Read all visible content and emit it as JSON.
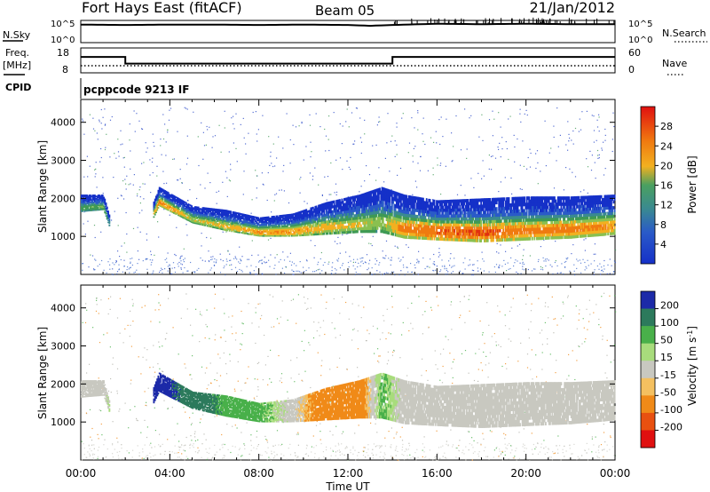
{
  "header": {
    "station": "Fort Hays East (fitACF)",
    "beam": "Beam 05",
    "date": "21/Jan/2012"
  },
  "status_panels": {
    "nsky_label": "N.Sky",
    "nsearch_label": "N.Search",
    "noise_ticks_left": [
      "10^5",
      "10^0"
    ],
    "noise_ticks_right": [
      "10^5",
      "10^0"
    ],
    "freq_label": "Freq.",
    "freq_unit": "[MHz]",
    "freq_ticks": [
      "18",
      "8"
    ],
    "nave_label": "Nave",
    "nave_ticks": [
      "60",
      "0"
    ],
    "cpid_label": "CPID",
    "cpid_value": "pcppcode 9213 IF"
  },
  "chart_data": [
    {
      "type": "line",
      "title": "",
      "ylabel": "N.Sky / N.Search",
      "scale": "log",
      "ylim_label": [
        "10^0",
        "10^5"
      ],
      "series": [
        {
          "name": "N.Sky",
          "x_hours": [
            0,
            2,
            4,
            6,
            8,
            10,
            12,
            13,
            14,
            16,
            18,
            20,
            22,
            24
          ],
          "values_log": [
            4.2,
            4.1,
            4.2,
            4.2,
            4.1,
            4.2,
            4.1,
            3.9,
            4.1,
            4.4,
            4.3,
            4.4,
            4.3,
            4.3
          ]
        }
      ]
    },
    {
      "type": "line",
      "title": "",
      "ylabel": "Freq. [MHz]",
      "series": [
        {
          "name": "Freq.",
          "x_hours": [
            0,
            2,
            2,
            14,
            14,
            24
          ],
          "values": [
            14.5,
            14.5,
            11.6,
            11.6,
            14.5,
            14.5
          ]
        },
        {
          "name": "Nave",
          "x_hours": [
            0,
            24
          ],
          "values": [
            8,
            8
          ]
        }
      ]
    },
    {
      "type": "heatmap",
      "title": "",
      "xlabel": "Time UT",
      "ylabel": "Slant Range [km]",
      "xlim_hours": [
        0,
        24
      ],
      "x_ticks": [
        "00:00",
        "04:00",
        "08:00",
        "12:00",
        "16:00",
        "20:00",
        "00:00"
      ],
      "y_ticks": [
        1000,
        2000,
        3000,
        4000
      ],
      "ylim": [
        0,
        4600
      ],
      "colorbar": {
        "label": "Power [dB]",
        "ticks": [
          4,
          8,
          12,
          16,
          20,
          24,
          28
        ]
      },
      "echo_band": {
        "hours": [
          0.0,
          1.0,
          2.0,
          3.5,
          5.0,
          6.5,
          8.0,
          9.5,
          11.0,
          12.5,
          13.5,
          14.5,
          16.0,
          18.0,
          20.0,
          22.0,
          24.0
        ],
        "range_low": [
          1650,
          1700,
          0,
          1800,
          1350,
          1150,
          1000,
          1000,
          1050,
          1100,
          1100,
          950,
          900,
          850,
          900,
          950,
          1050
        ],
        "range_high": [
          2100,
          2100,
          0,
          2300,
          1800,
          1700,
          1500,
          1600,
          1900,
          2100,
          2300,
          2100,
          1950,
          2000,
          2050,
          2050,
          2100
        ],
        "peak_db": [
          14,
          16,
          0,
          26,
          20,
          22,
          24,
          24,
          22,
          20,
          18,
          26,
          28,
          28,
          26,
          26,
          24
        ]
      }
    },
    {
      "type": "heatmap",
      "title": "",
      "xlabel": "Time UT",
      "ylabel": "Slant Range [km]",
      "xlim_hours": [
        0,
        24
      ],
      "x_ticks": [
        "00:00",
        "04:00",
        "08:00",
        "12:00",
        "16:00",
        "20:00",
        "00:00"
      ],
      "y_ticks": [
        1000,
        2000,
        3000,
        4000
      ],
      "ylim": [
        0,
        4600
      ],
      "colorbar": {
        "label": "Velocity [m s^-1]",
        "ticks": [
          200,
          100,
          50,
          15,
          -15,
          -50,
          -100,
          -200
        ]
      },
      "echo_band": {
        "hours": [
          0.0,
          1.0,
          3.5,
          5.0,
          6.5,
          8.0,
          9.5,
          11.0,
          12.5,
          13.5,
          14.5,
          16.0,
          18.0,
          20.0,
          22.0,
          24.0
        ],
        "velocity": [
          0,
          0,
          180,
          120,
          60,
          40,
          0,
          -60,
          -60,
          40,
          0,
          0,
          0,
          0,
          0,
          0
        ]
      }
    }
  ],
  "axes_text": {
    "xlabel": "Time UT",
    "ylabel": "Slant Range [km]",
    "power_label": "Power [dB]",
    "velocity_label": "Velocity [m s",
    "velocity_sup": "-1",
    "velocity_close": "]"
  },
  "colors": {
    "power_scale": [
      "#1530c8",
      "#2a5ac8",
      "#3a8a90",
      "#3f9a55",
      "#8ac050",
      "#f2b020",
      "#f07a10",
      "#e03010"
    ],
    "velocity_scale": [
      "#1c2aa8",
      "#2c7a5c",
      "#49b04a",
      "#a8dc7c",
      "#c8c8c0",
      "#f4c060",
      "#f08a18",
      "#e85010",
      "#e01010"
    ]
  }
}
